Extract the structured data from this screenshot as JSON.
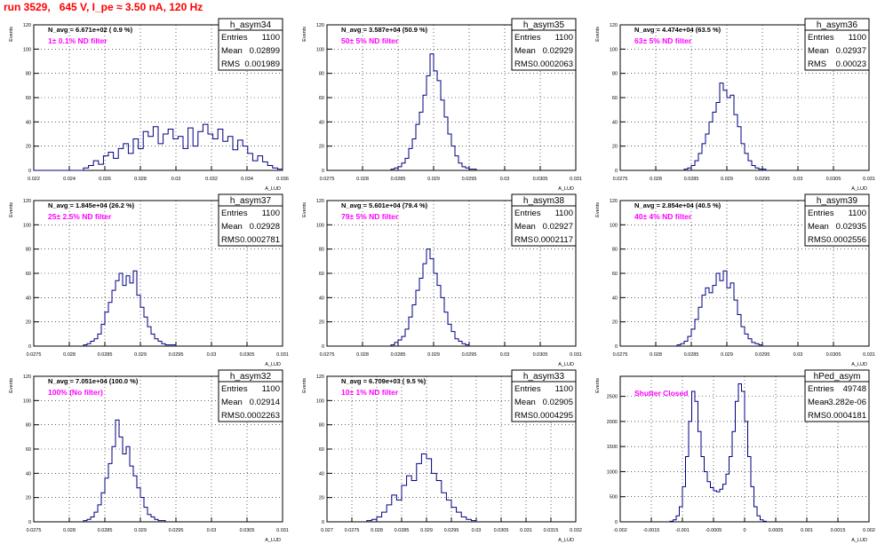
{
  "title": "run 3529,   645 V, I_pe ≈ 3.50 nA, 120 Hz",
  "chart_data": [
    {
      "type": "bar",
      "hist_name": "h_asym34",
      "stats": {
        "entries_label": "Entries",
        "entries": "1100",
        "mean_label": "Mean",
        "mean": "0.02899",
        "rms_label": "RMS",
        "rms": "0.001989"
      },
      "navg": "N_avg = 6.671e+02 ( 0.9 %)",
      "filter": "1± 0.1% ND filter",
      "ylabel": "Events",
      "xlabel": "A_LUD",
      "xlim": [
        0.022,
        0.036
      ],
      "ylim": [
        0,
        120
      ],
      "xticks": [
        "0.022",
        "0.024",
        "0.026",
        "0.028",
        "0.03",
        "0.032",
        "0.034",
        "0.036"
      ],
      "yticks": [
        "0",
        "20",
        "40",
        "60",
        "80",
        "100",
        "120"
      ],
      "bin_lo": 0.022,
      "bin_w": 0.00028,
      "values": [
        0,
        0,
        0,
        0,
        0,
        0,
        0,
        0,
        0,
        0,
        2,
        4,
        8,
        5,
        12,
        15,
        10,
        18,
        22,
        14,
        26,
        18,
        32,
        28,
        36,
        22,
        30,
        34,
        26,
        28,
        18,
        35,
        20,
        32,
        38,
        30,
        26,
        34,
        24,
        28,
        17,
        25,
        20,
        14,
        8,
        12,
        7,
        4,
        2,
        1
      ]
    },
    {
      "type": "bar",
      "hist_name": "h_asym35",
      "stats": {
        "entries_label": "Entries",
        "entries": "1100",
        "mean_label": "Mean",
        "mean": "0.02929",
        "rms_label": "RMS",
        "rms": "0.0002063"
      },
      "navg": "N_avg = 3.587e+04 (50.9 %)",
      "filter": "50± 5% ND filter",
      "ylabel": "Events",
      "xlabel": "A_LUD",
      "xlim": [
        0.0275,
        0.031
      ],
      "ylim": [
        0,
        120
      ],
      "xticks": [
        "0.0275",
        "0.028",
        "0.0285",
        "0.029",
        "0.0295",
        "0.03",
        "0.0305",
        "0.031"
      ],
      "yticks": [
        "0",
        "20",
        "40",
        "60",
        "80",
        "100",
        "120"
      ],
      "bin_lo": 0.0284,
      "bin_w": 5e-05,
      "values": [
        1,
        2,
        3,
        6,
        10,
        18,
        26,
        38,
        48,
        62,
        78,
        96,
        82,
        74,
        58,
        44,
        30,
        20,
        12,
        6,
        3,
        2,
        1,
        1
      ]
    },
    {
      "type": "bar",
      "hist_name": "h_asym36",
      "stats": {
        "entries_label": "Entries",
        "entries": "1100",
        "mean_label": "Mean",
        "mean": "0.02937",
        "rms_label": "RMS",
        "rms": "0.00023"
      },
      "navg": "N_avg = 4.474e+04 (63.5 %)",
      "filter": "63± 5% ND filter",
      "ylabel": "Events",
      "xlabel": "A_LUD",
      "xlim": [
        0.0275,
        0.031
      ],
      "ylim": [
        0,
        120
      ],
      "xticks": [
        "0.0275",
        "0.028",
        "0.0285",
        "0.029",
        "0.0295",
        "0.03",
        "0.0305",
        "0.031"
      ],
      "yticks": [
        "0",
        "20",
        "40",
        "60",
        "80",
        "100",
        "120"
      ],
      "bin_lo": 0.0284,
      "bin_w": 5e-05,
      "values": [
        1,
        2,
        4,
        8,
        14,
        22,
        30,
        40,
        48,
        56,
        72,
        66,
        60,
        62,
        46,
        36,
        22,
        14,
        8,
        4,
        2,
        1,
        1,
        0
      ]
    },
    {
      "type": "bar",
      "hist_name": "h_asym37",
      "stats": {
        "entries_label": "Entries",
        "entries": "1100",
        "mean_label": "Mean",
        "mean": "0.02928",
        "rms_label": "RMS",
        "rms": "0.0002781"
      },
      "navg": "N_avg = 1.845e+04 (26.2 %)",
      "filter": "25± 2.5% ND filter",
      "ylabel": "Events",
      "xlabel": "A_LUD",
      "xlim": [
        0.0275,
        0.031
      ],
      "ylim": [
        0,
        120
      ],
      "xticks": [
        "0.0275",
        "0.028",
        "0.0285",
        "0.029",
        "0.0295",
        "0.03",
        "0.0305",
        "0.031"
      ],
      "yticks": [
        "0",
        "20",
        "40",
        "60",
        "80",
        "100",
        "120"
      ],
      "bin_lo": 0.0282,
      "bin_w": 5e-05,
      "values": [
        1,
        2,
        4,
        6,
        10,
        18,
        28,
        36,
        46,
        54,
        60,
        50,
        58,
        52,
        62,
        42,
        32,
        24,
        16,
        10,
        6,
        4,
        2,
        1,
        1,
        1
      ]
    },
    {
      "type": "bar",
      "hist_name": "h_asym38",
      "stats": {
        "entries_label": "Entries",
        "entries": "1100",
        "mean_label": "Mean",
        "mean": "0.02927",
        "rms_label": "RMS",
        "rms": "0.0002117"
      },
      "navg": "N_avg = 5.601e+04 (79.4 %)",
      "filter": "79± 5% ND filter",
      "ylabel": "Events",
      "xlabel": "A_LUD",
      "xlim": [
        0.0275,
        0.031
      ],
      "ylim": [
        0,
        120
      ],
      "xticks": [
        "0.0275",
        "0.028",
        "0.0285",
        "0.029",
        "0.0295",
        "0.03",
        "0.0305",
        "0.031"
      ],
      "yticks": [
        "0",
        "20",
        "40",
        "60",
        "80",
        "100",
        "120"
      ],
      "bin_lo": 0.0284,
      "bin_w": 5e-05,
      "values": [
        1,
        3,
        5,
        8,
        14,
        24,
        34,
        46,
        56,
        68,
        80,
        72,
        60,
        50,
        40,
        28,
        18,
        12,
        6,
        4,
        2,
        1
      ]
    },
    {
      "type": "bar",
      "hist_name": "h_asym39",
      "stats": {
        "entries_label": "Entries",
        "entries": "1100",
        "mean_label": "Mean",
        "mean": "0.02935",
        "rms_label": "RMS",
        "rms": "0.0002556"
      },
      "navg": "N_avg = 2.854e+04 (40.5 %)",
      "filter": "40± 4% ND filter",
      "ylabel": "Events",
      "xlabel": "A_LUD",
      "xlim": [
        0.0275,
        0.031
      ],
      "ylim": [
        0,
        120
      ],
      "xticks": [
        "0.0275",
        "0.028",
        "0.0285",
        "0.029",
        "0.0295",
        "0.03",
        "0.0305",
        "0.031"
      ],
      "yticks": [
        "0",
        "20",
        "40",
        "60",
        "80",
        "100",
        "120"
      ],
      "bin_lo": 0.0283,
      "bin_w": 5e-05,
      "values": [
        1,
        2,
        4,
        8,
        14,
        22,
        32,
        42,
        48,
        44,
        50,
        60,
        54,
        62,
        48,
        52,
        38,
        26,
        16,
        10,
        6,
        3,
        2,
        1
      ]
    },
    {
      "type": "bar",
      "hist_name": "h_asym32",
      "stats": {
        "entries_label": "Entries",
        "entries": "1100",
        "mean_label": "Mean",
        "mean": "0.02914",
        "rms_label": "RMS",
        "rms": "0.0002263"
      },
      "navg": "N_avg = 7.051e+04 (100.0 %)",
      "filter": "100% (No filter)",
      "ylabel": "Events",
      "xlabel": "A_LUD",
      "xlim": [
        0.0275,
        0.031
      ],
      "ylim": [
        0,
        120
      ],
      "xticks": [
        "0.0275",
        "0.028",
        "0.0285",
        "0.029",
        "0.0295",
        "0.03",
        "0.0305",
        "0.031"
      ],
      "yticks": [
        "0",
        "20",
        "40",
        "60",
        "80",
        "100",
        "120"
      ],
      "bin_lo": 0.0282,
      "bin_w": 5e-05,
      "values": [
        1,
        2,
        4,
        8,
        14,
        24,
        36,
        48,
        62,
        84,
        70,
        56,
        62,
        46,
        38,
        28,
        20,
        12,
        6,
        4,
        2,
        1,
        1
      ]
    },
    {
      "type": "bar",
      "hist_name": "h_asym33",
      "stats": {
        "entries_label": "Entries",
        "entries": "1100",
        "mean_label": "Mean",
        "mean": "0.02905",
        "rms_label": "RMS",
        "rms": "0.0004295"
      },
      "navg": "N_avg = 6.709e+03 ( 9.5 %)",
      "filter": "10± 1% ND filter",
      "ylabel": "Events",
      "xlabel": "A_LUD",
      "xlim": [
        0.027,
        0.032
      ],
      "ylim": [
        0,
        120
      ],
      "xticks": [
        "0.027",
        "0.0275",
        "0.028",
        "0.0285",
        "0.029",
        "0.0295",
        "0.03",
        "0.0305",
        "0.031",
        "0.0315",
        "0.032"
      ],
      "yticks": [
        "0",
        "20",
        "40",
        "60",
        "80",
        "100",
        "120"
      ],
      "bin_lo": 0.0278,
      "bin_w": 0.0001,
      "values": [
        1,
        2,
        4,
        8,
        14,
        22,
        18,
        30,
        38,
        34,
        48,
        56,
        52,
        40,
        34,
        24,
        18,
        12,
        8,
        4,
        2,
        1
      ]
    },
    {
      "type": "bar",
      "hist_name": "hPed_asym",
      "stats": {
        "entries_label": "Entries",
        "entries": "49748",
        "mean_label": "Mean",
        "mean": "-3.282e-06",
        "rms_label": "RMS",
        "rms": "0.0004181"
      },
      "navg": "",
      "filter": "Shutter Closed",
      "ylabel": "Events",
      "xlabel": "A_LUD",
      "xlim": [
        -0.002,
        0.002
      ],
      "ylim": [
        0,
        2900
      ],
      "xticks": [
        "-0.002",
        "-0.0015",
        "-0.001",
        "-0.0005",
        "0",
        "0.0005",
        "0.001",
        "0.0015",
        "0.002"
      ],
      "yticks": [
        "0",
        "500",
        "1000",
        "1500",
        "2000",
        "2500"
      ],
      "bin_lo": -0.0012,
      "bin_w": 5e-05,
      "values": [
        10,
        40,
        120,
        300,
        700,
        1300,
        2000,
        2600,
        2400,
        1800,
        1300,
        1000,
        800,
        680,
        620,
        600,
        650,
        750,
        950,
        1300,
        1800,
        2400,
        2750,
        2600,
        2000,
        1300,
        700,
        300,
        120,
        40,
        10,
        0
      ]
    }
  ]
}
